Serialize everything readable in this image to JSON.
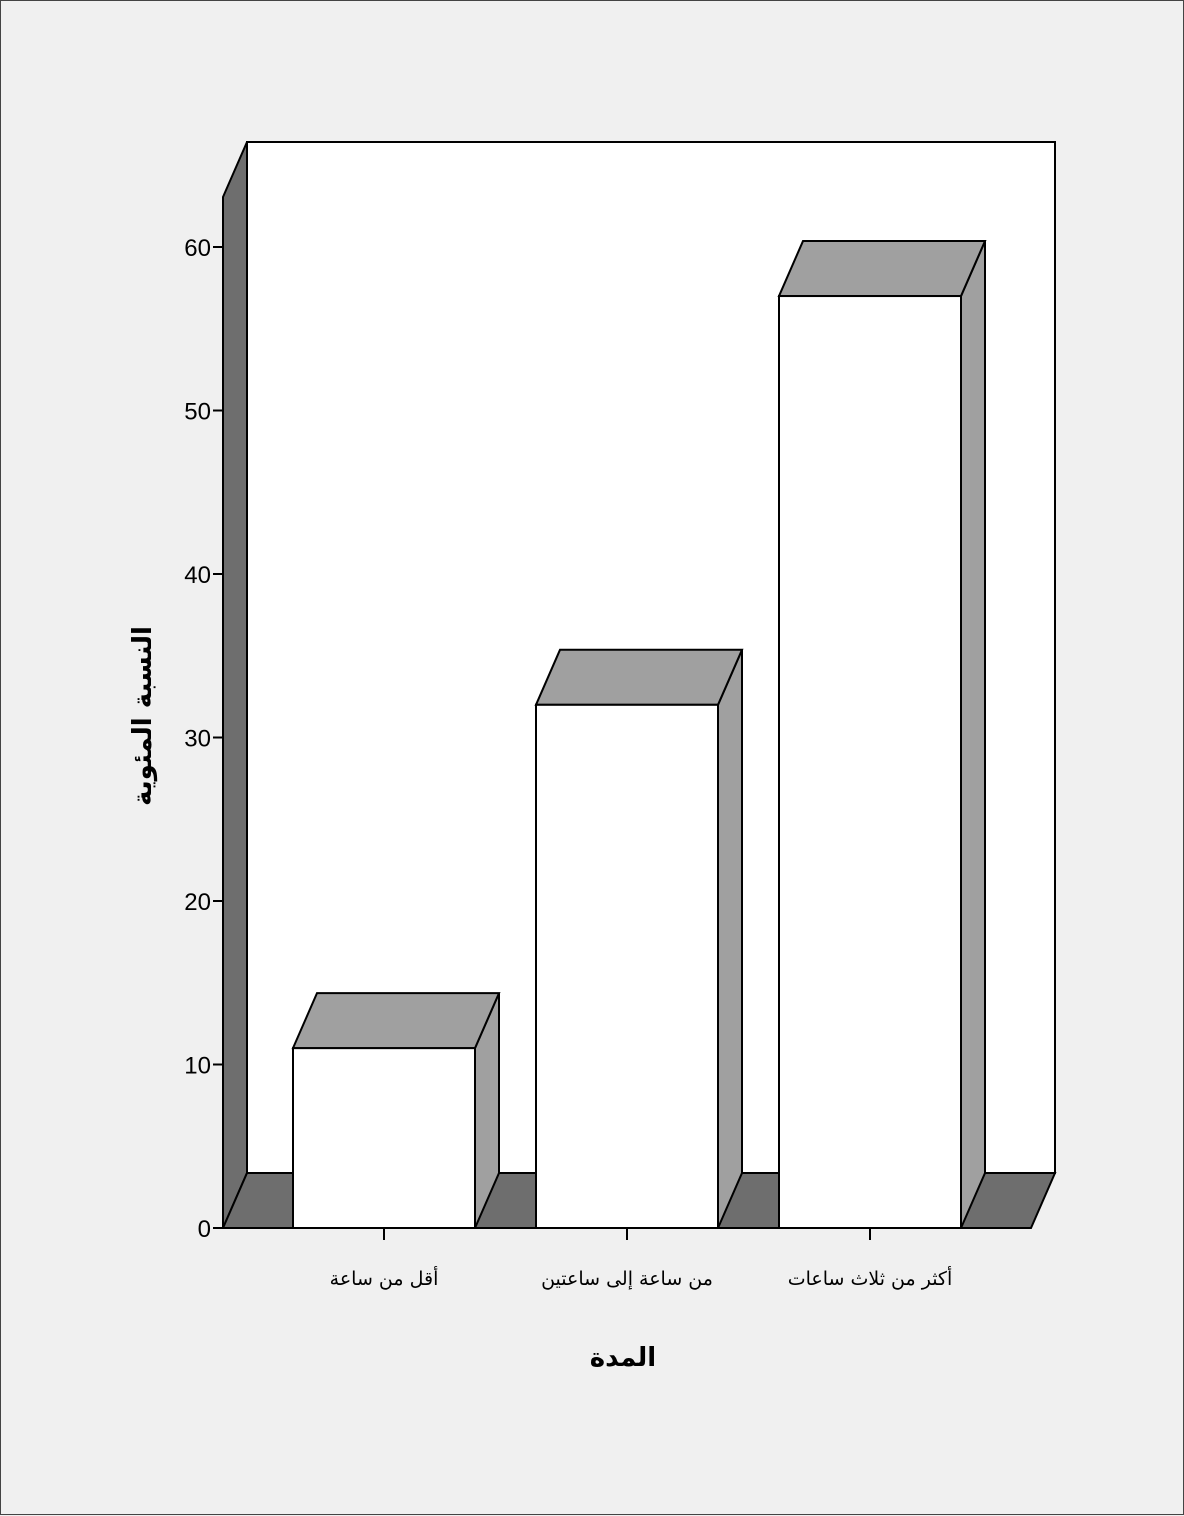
{
  "chart_data": {
    "type": "bar",
    "categories": [
      "أقل من ساعة",
      "من ساعة إلى ساعتين",
      "أكثر من ثلاث ساعات"
    ],
    "values": [
      11,
      32,
      57
    ],
    "xlabel": "المدة",
    "ylabel": "النسبة المئوية",
    "ylim": [
      0,
      60
    ],
    "yticks": [
      0,
      10,
      20,
      30,
      40,
      50,
      60
    ],
    "grid": false,
    "legend": "none",
    "style": "3d",
    "colors": {
      "bar_face": "#ffffff",
      "bar_top": "#a0a0a0",
      "bar_side": "#a0a0a0",
      "back_wall": "#ffffff",
      "side_wall": "#6e6e6e",
      "floor": "#6e6e6e",
      "background": "#f0f0f0"
    }
  }
}
